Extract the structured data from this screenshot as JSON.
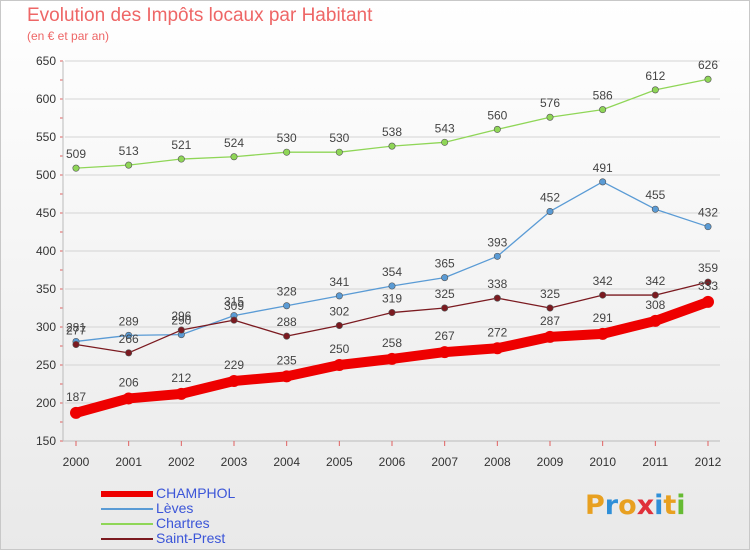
{
  "logo": {
    "chars": [
      "P",
      "r",
      "o",
      "x",
      "i",
      "t",
      "i"
    ],
    "colors": [
      "#e8a020",
      "#2f8fd8",
      "#e8a020",
      "#e0303a",
      "#2f8fd8",
      "#e8a020",
      "#66bb33"
    ]
  },
  "chart_data": {
    "type": "line",
    "title": "Evolution des Impôts locaux par Habitant",
    "subtitle": "(en € et par an)",
    "x": [
      "2000",
      "2001",
      "2002",
      "2003",
      "2004",
      "2005",
      "2006",
      "2007",
      "2008",
      "2009",
      "2010",
      "2011",
      "2012"
    ],
    "ylim": [
      150,
      650
    ],
    "yticks": [
      150,
      200,
      250,
      300,
      350,
      400,
      450,
      500,
      550,
      600,
      650
    ],
    "grid": "horizontal",
    "legend_position": "bottom-left",
    "series": [
      {
        "name": "CHAMPHOL",
        "color": "#ee0000",
        "values": [
          187,
          206,
          212,
          229,
          235,
          250,
          258,
          267,
          272,
          287,
          291,
          308,
          333
        ]
      },
      {
        "name": "Lèves",
        "color": "#5a9bd5",
        "values": [
          281,
          289,
          290,
          315,
          328,
          341,
          354,
          365,
          393,
          452,
          491,
          455,
          432
        ]
      },
      {
        "name": "Chartres",
        "color": "#8fd657",
        "values": [
          509,
          513,
          521,
          524,
          530,
          530,
          538,
          543,
          560,
          576,
          586,
          612,
          626
        ]
      },
      {
        "name": "Saint-Prest",
        "color": "#7b1a20",
        "values": [
          277,
          266,
          296,
          309,
          288,
          302,
          319,
          325,
          338,
          325,
          342,
          342,
          359
        ]
      }
    ]
  }
}
